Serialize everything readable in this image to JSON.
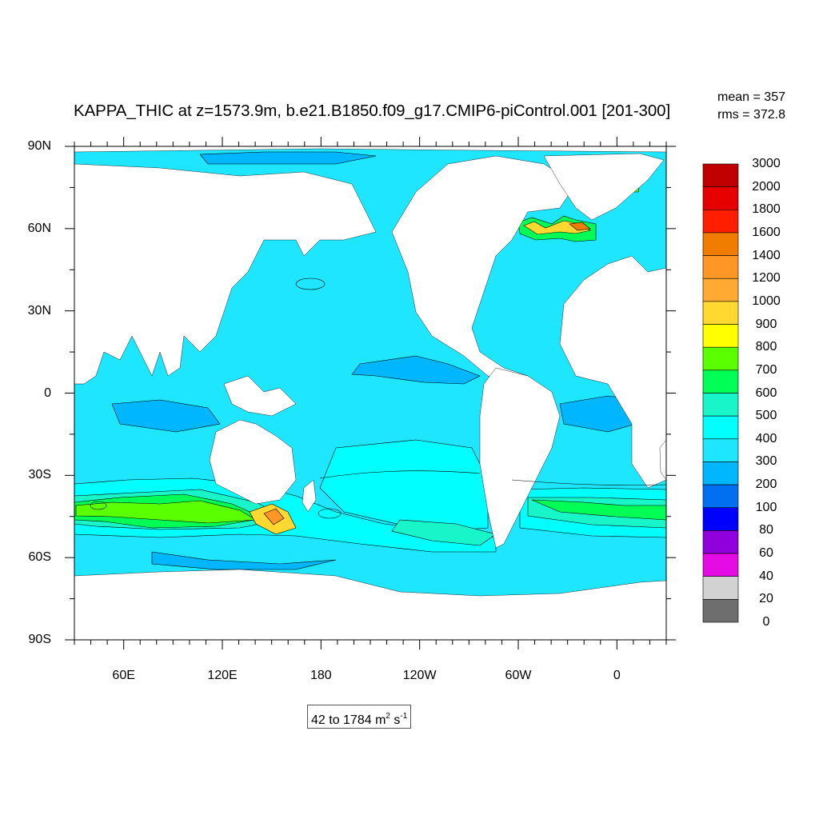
{
  "title": "KAPPA_THIC at z=1573.9m, b.e21.B1850.f09_g17.CMIP6-piControl.001 [201-300]",
  "stats": {
    "mean": "mean = 357",
    "rms": "rms = 372.8"
  },
  "range": {
    "text": "42 to 1784 m",
    "sup1": "2",
    "mid": " s",
    "sup2": "-1"
  },
  "lat_labels": [
    {
      "text": "90N",
      "lat": 90
    },
    {
      "text": "60N",
      "lat": 60
    },
    {
      "text": "30N",
      "lat": 30
    },
    {
      "text": "0",
      "lat": 0
    },
    {
      "text": "30S",
      "lat": -30
    },
    {
      "text": "60S",
      "lat": -60
    },
    {
      "text": "90S",
      "lat": -90
    }
  ],
  "lon_labels": [
    {
      "text": "60E",
      "lon": 60
    },
    {
      "text": "120E",
      "lon": 120
    },
    {
      "text": "180",
      "lon": 180
    },
    {
      "text": "120W",
      "lon": 240
    },
    {
      "text": "60W",
      "lon": 300
    },
    {
      "text": "0",
      "lon": 360
    }
  ],
  "colorbar": {
    "labels": [
      "0",
      "20",
      "40",
      "60",
      "80",
      "100",
      "200",
      "300",
      "400",
      "500",
      "600",
      "700",
      "800",
      "900",
      "1000",
      "1200",
      "1400",
      "1600",
      "1800",
      "2000",
      "3000"
    ],
    "colors": [
      "#6e6e6e",
      "#d2d2d2",
      "#e50be5",
      "#9000dc",
      "#0000ff",
      "#0070f0",
      "#00b6ff",
      "#1ee6ff",
      "#00ffff",
      "#18f5c8",
      "#00ff55",
      "#5aff00",
      "#ffff00",
      "#ffd830",
      "#ffaa33",
      "#ff9626",
      "#f07d00",
      "#ff1e00",
      "#e60000",
      "#c00000"
    ]
  },
  "colors": {
    "land": "#ffffff",
    "ocean_base": "#1ee6ff",
    "contour": "#000000"
  }
}
